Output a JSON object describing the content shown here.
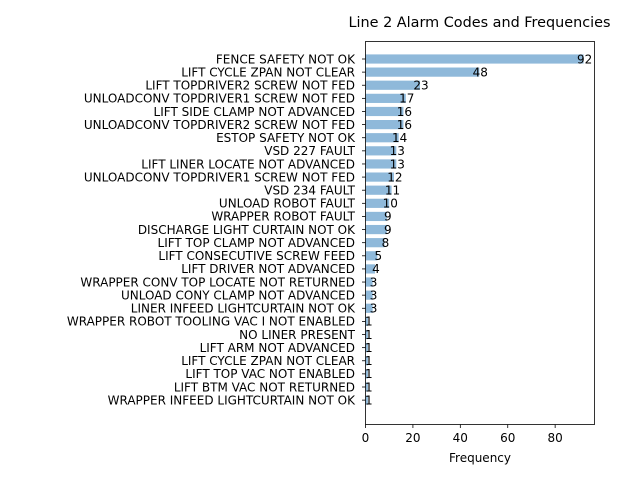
{
  "chart_data": {
    "type": "bar",
    "orientation": "horizontal",
    "title": "Line 2 Alarm Codes and Frequencies",
    "xlabel": "Frequency",
    "ylabel": "",
    "xlim": [
      0,
      96.6
    ],
    "xticks": [
      0,
      20,
      40,
      60,
      80
    ],
    "grid": false,
    "bar_color": "#8fb9da",
    "categories": [
      "FENCE SAFETY NOT OK",
      "LIFT CYCLE ZPAN NOT CLEAR",
      "LIFT TOPDRIVER2 SCREW NOT FED",
      "UNLOADCONV TOPDRIVER1 SCREW NOT FED",
      "LIFT SIDE CLAMP NOT ADVANCED",
      "UNLOADCONV TOPDRIVER2 SCREW NOT FED",
      "ESTOP SAFETY NOT OK",
      "VSD 227 FAULT",
      "LIFT LINER LOCATE NOT ADVANCED",
      "UNLOADCONV TOPDRIVER1 SCREW NOT FED",
      "VSD 234 FAULT",
      "UNLOAD ROBOT FAULT",
      "WRAPPER ROBOT FAULT",
      "DISCHARGE LIGHT CURTAIN NOT OK",
      "LIFT TOP CLAMP NOT ADVANCED",
      "LIFT CONSECUTIVE SCREW FEED",
      "LIFT DRIVER NOT ADVANCED",
      "WRAPPER CONV TOP LOCATE NOT RETURNED",
      "UNLOAD CONY CLAMP NOT ADVANCED",
      "LINER INFEED LIGHTCURTAIN NOT OK",
      "WRAPPER ROBOT TOOLING VAC I NOT ENABLED",
      "NO LINER PRESENT",
      "LIFT ARM NOT ADVANCED",
      "LIFT CYCLE ZPAN NOT CLEAR",
      "LIFT TOP VAC NOT ENABLED",
      "LIFT BTM VAC NOT RETURNED",
      "WRAPPER INFEED LIGHTCURTAIN NOT OK"
    ],
    "values": [
      92,
      48,
      23,
      17,
      16,
      16,
      14,
      13,
      13,
      12,
      11,
      10,
      9,
      9,
      8,
      5,
      4,
      3,
      3,
      3,
      1,
      1,
      1,
      1,
      1,
      1,
      1
    ]
  }
}
